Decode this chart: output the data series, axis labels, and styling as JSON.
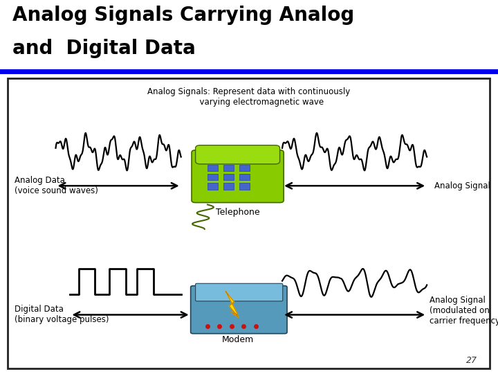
{
  "title_line1": "Analog Signals Carrying Analog",
  "title_line2": "and  Digital Data",
  "title_color": "#000000",
  "title_fontsize": 20,
  "blue_line_color": "#0000ee",
  "slide_bg": "#c0bfc0",
  "slide_number": "27",
  "description_text": "Analog Signals: Represent data with continuously\n          varying electromagnetic wave",
  "analog_data_label": "Analog Data\n(voice sound waves)",
  "analog_signal_label": "Analog Signal",
  "telephone_label": "Telephone",
  "digital_data_label": "Digital Data\n(binary voltage pulses)",
  "digital_signal_label": "Analog Signal\n(modulated on\ncarrier frequency)",
  "modem_label": "Modem",
  "text_color": "#000000",
  "arrow_color": "#000000"
}
